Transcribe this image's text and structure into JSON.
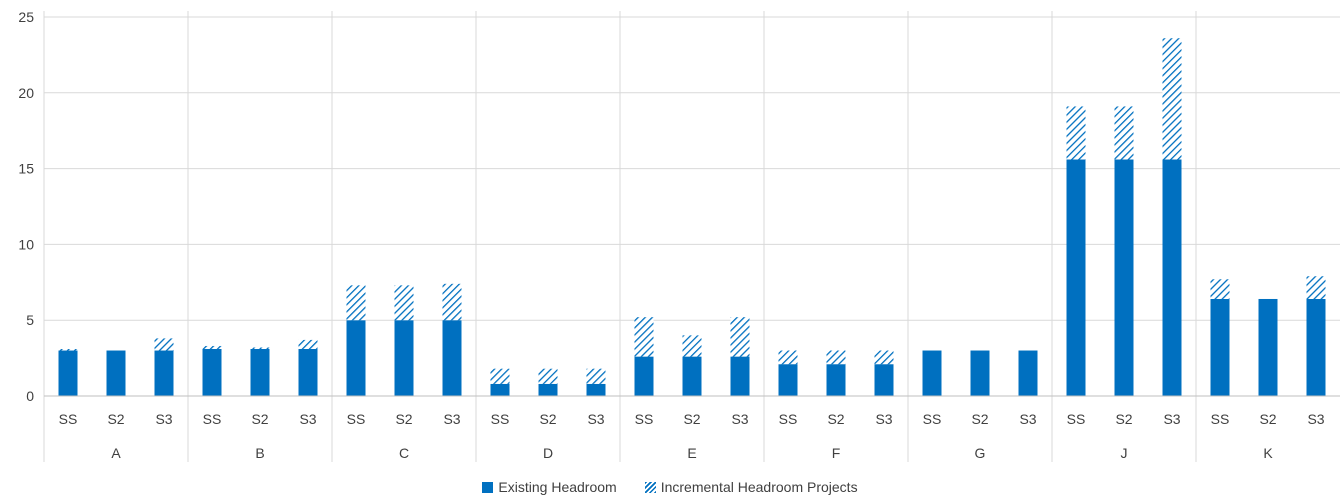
{
  "chart_data": {
    "type": "bar",
    "stacked": true,
    "groups": [
      "A",
      "B",
      "C",
      "D",
      "E",
      "F",
      "G",
      "J",
      "K"
    ],
    "subcategories": [
      "SS",
      "S2",
      "S3"
    ],
    "ylim": [
      0,
      25
    ],
    "yticks": [
      "0",
      "5",
      "10",
      "15",
      "20",
      "25"
    ],
    "grid": true,
    "legend_position": "bottom",
    "series": [
      {
        "name": "Existing Headroom",
        "color": "#0070c0",
        "values": [
          3.0,
          3.0,
          3.0,
          3.1,
          3.1,
          3.1,
          5.0,
          5.0,
          5.0,
          0.8,
          0.8,
          0.8,
          2.6,
          2.6,
          2.6,
          2.1,
          2.1,
          2.1,
          3.0,
          3.0,
          3.0,
          15.6,
          15.6,
          15.6,
          6.4,
          6.4,
          6.4
        ]
      },
      {
        "name": "Incremental Headroom Projects",
        "color": "#0070c0",
        "pattern": "hatch",
        "values": [
          0.1,
          0.0,
          0.8,
          0.2,
          0.1,
          0.6,
          2.3,
          2.3,
          2.4,
          1.0,
          1.0,
          1.0,
          2.6,
          1.4,
          2.6,
          0.9,
          0.9,
          0.9,
          0.0,
          0.0,
          0.0,
          3.5,
          3.5,
          8.0,
          1.3,
          0.0,
          1.5
        ]
      }
    ]
  }
}
